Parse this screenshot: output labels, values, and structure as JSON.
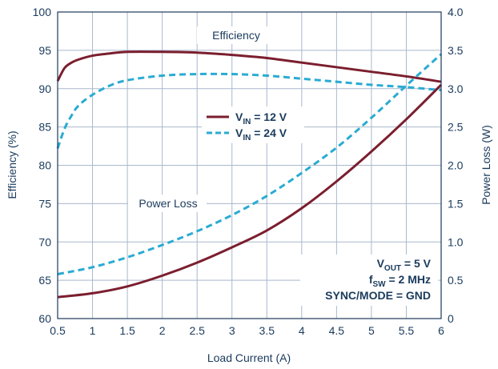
{
  "chart_data": {
    "type": "line",
    "xlabel": "Load Current (A)",
    "ylabel_left": "Efficiency (%)",
    "ylabel_right": "Power Loss (W)",
    "xlim": [
      0.5,
      6
    ],
    "ylim_left": [
      60,
      100
    ],
    "ylim_right": [
      0,
      4
    ],
    "x_ticks": [
      "0.5",
      "1",
      "1.5",
      "2",
      "2.5",
      "3",
      "3.5",
      "4",
      "4.5",
      "5",
      "5.5",
      "6"
    ],
    "y_left_ticks": [
      "60",
      "65",
      "70",
      "75",
      "80",
      "85",
      "90",
      "95",
      "100"
    ],
    "y_right_ticks": [
      "0",
      "0.5",
      "1.0",
      "1.5",
      "2.0",
      "2.5",
      "3.0",
      "3.5",
      "4.0"
    ],
    "grid": true,
    "annotations": {
      "efficiency": "Efficiency",
      "power_loss": "Power Loss"
    },
    "legend": {
      "placement": "center",
      "entries": [
        {
          "prefix": "V",
          "sub": "IN",
          "suffix": " = 12 V"
        },
        {
          "prefix": "V",
          "sub": "IN",
          "suffix": " = 24 V"
        }
      ]
    },
    "conditions": {
      "line1": {
        "prefix": "V",
        "sub": "OUT",
        "suffix": " = 5 V"
      },
      "line2": {
        "prefix": "f",
        "sub": "SW",
        "suffix": " = 2 MHz"
      },
      "line3": "SYNC/MODE = GND"
    },
    "series": [
      {
        "axis": "left",
        "color": "#7b1e2e",
        "dash": "solid",
        "x": [
          0.5,
          0.6,
          0.7,
          0.8,
          1.0,
          1.25,
          1.5,
          2.0,
          2.5,
          3.0,
          3.5,
          4.0,
          4.5,
          5.0,
          5.5,
          6.0
        ],
        "y": [
          91.0,
          92.7,
          93.4,
          93.8,
          94.3,
          94.6,
          94.8,
          94.8,
          94.7,
          94.4,
          94.0,
          93.4,
          92.8,
          92.2,
          91.6,
          90.9
        ]
      },
      {
        "axis": "left",
        "color": "#2aabd2",
        "dash": "dashed",
        "x": [
          0.5,
          0.6,
          0.7,
          0.8,
          1.0,
          1.25,
          1.5,
          2.0,
          2.5,
          3.0,
          3.5,
          4.0,
          4.5,
          5.0,
          5.5,
          6.0
        ],
        "y": [
          82.2,
          84.8,
          86.5,
          87.8,
          89.2,
          90.4,
          91.1,
          91.7,
          91.9,
          91.9,
          91.7,
          91.3,
          90.9,
          90.5,
          90.2,
          89.8
        ]
      },
      {
        "axis": "right",
        "color": "#7b1e2e",
        "dash": "solid",
        "x": [
          0.5,
          1.0,
          1.5,
          2.0,
          2.5,
          3.0,
          3.5,
          4.0,
          4.5,
          5.0,
          5.5,
          6.0
        ],
        "y": [
          0.28,
          0.33,
          0.42,
          0.56,
          0.73,
          0.93,
          1.15,
          1.44,
          1.79,
          2.18,
          2.6,
          3.05
        ]
      },
      {
        "axis": "right",
        "color": "#2aabd2",
        "dash": "dashed",
        "x": [
          0.5,
          1.0,
          1.5,
          2.0,
          2.5,
          3.0,
          3.5,
          4.0,
          4.5,
          5.0,
          5.5,
          6.0
        ],
        "y": [
          0.58,
          0.67,
          0.8,
          0.96,
          1.14,
          1.35,
          1.6,
          1.9,
          2.23,
          2.62,
          3.04,
          3.45
        ]
      }
    ]
  }
}
